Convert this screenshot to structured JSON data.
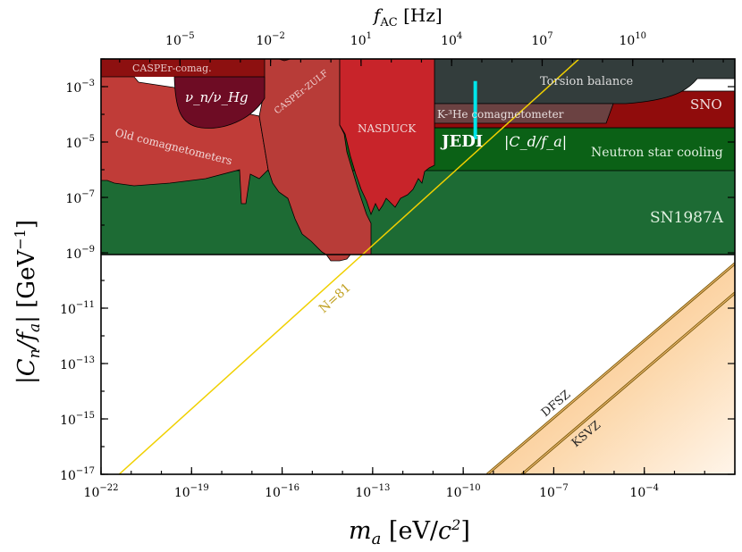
{
  "chart_data": {
    "type": "area",
    "xlabel": "m_a [eV/c²]",
    "ylabel": "|C_n/f_a| [GeV⁻¹]",
    "top_axis_label": "f_AC [Hz]",
    "x_scale": "log",
    "y_scale": "log",
    "xlim": [
      1e-22,
      0.1
    ],
    "ylim": [
      1e-17,
      0.01
    ],
    "grid": false,
    "x_ticks": [
      {
        "exp": -22,
        "label": "10^-22"
      },
      {
        "exp": -19,
        "label": "10^-19"
      },
      {
        "exp": -16,
        "label": "10^-16"
      },
      {
        "exp": -13,
        "label": "10^-13"
      },
      {
        "exp": -10,
        "label": "10^-10"
      },
      {
        "exp": -7,
        "label": "10^-7"
      },
      {
        "exp": -4,
        "label": "10^-4"
      }
    ],
    "y_ticks": [
      {
        "exp": -17,
        "label": "10^-17"
      },
      {
        "exp": -15,
        "label": "10^-15"
      },
      {
        "exp": -13,
        "label": "10^-13"
      },
      {
        "exp": -11,
        "label": "10^-11"
      },
      {
        "exp": -9,
        "label": "10^-9"
      },
      {
        "exp": -7,
        "label": "10^-7"
      },
      {
        "exp": -5,
        "label": "10^-5"
      },
      {
        "exp": -3,
        "label": "10^-3"
      }
    ],
    "top_ticks": [
      {
        "exp": -5,
        "label": "10^-5"
      },
      {
        "exp": -2,
        "label": "10^-2"
      },
      {
        "exp": 1,
        "label": "10^1"
      },
      {
        "exp": 4,
        "label": "10^4"
      },
      {
        "exp": 7,
        "label": "10^7"
      },
      {
        "exp": 10,
        "label": "10^10"
      }
    ],
    "regions": [
      {
        "name": "SN1987A",
        "color": "#1d6b34",
        "y_range_exp": [
          -9,
          -6.3
        ]
      },
      {
        "name": "Neutron star cooling",
        "color": "#0b6116",
        "y_range_exp": [
          -6.3,
          -4.6
        ]
      },
      {
        "name": "SNO",
        "color": "#900c0c",
        "y_range_exp": [
          -4.6,
          -3.4
        ]
      },
      {
        "name": "Torsion balance",
        "color": "#333d3c"
      },
      {
        "name": "K-³He comagnetometer",
        "color": "#6b4242"
      },
      {
        "name": "NASDUCK",
        "color": "#c8242a"
      },
      {
        "name": "CASPEr-ZULF",
        "color": "#b83c38"
      },
      {
        "name": "CASPEr-comag.",
        "color": "#8d1010"
      },
      {
        "name": "ν_n/ν_Hg",
        "color": "#6e0c24"
      },
      {
        "name": "Old comagnetometers",
        "color": "#c03c38"
      }
    ],
    "lines": [
      {
        "name": "N=81",
        "color": "#f0d000",
        "points_log": [
          [
            -21.4,
            -17
          ],
          [
            -2.2,
            1.9
          ]
        ]
      },
      {
        "name": "DFSZ",
        "color": "#806010"
      },
      {
        "name": "KSVZ",
        "color": "#806010"
      }
    ],
    "markers": [
      {
        "name": "JEDI |C_d/f_a|",
        "color": "#00e5ea",
        "m_a_log": -9.6,
        "y_range_exp": [
          -4.9,
          -2.8
        ]
      }
    ],
    "annotations": {
      "jedi": "JEDI",
      "jedi_coupling": "|C_d/f_a|",
      "sn": "SN1987A",
      "ns": "Neutron star cooling",
      "sno": "SNO",
      "torsion": "Torsion balance",
      "k3he": "K-³He comagnetometer",
      "nasduck": "NASDUCK",
      "zulf": "CASPEr-ZULF",
      "comag": "CASPEr-comag.",
      "nuhg": "ν_n/ν_Hg",
      "old": "Old comagnetometers",
      "n81": "N=81",
      "dfsz": "DFSZ",
      "ksvz": "KSVZ"
    }
  }
}
